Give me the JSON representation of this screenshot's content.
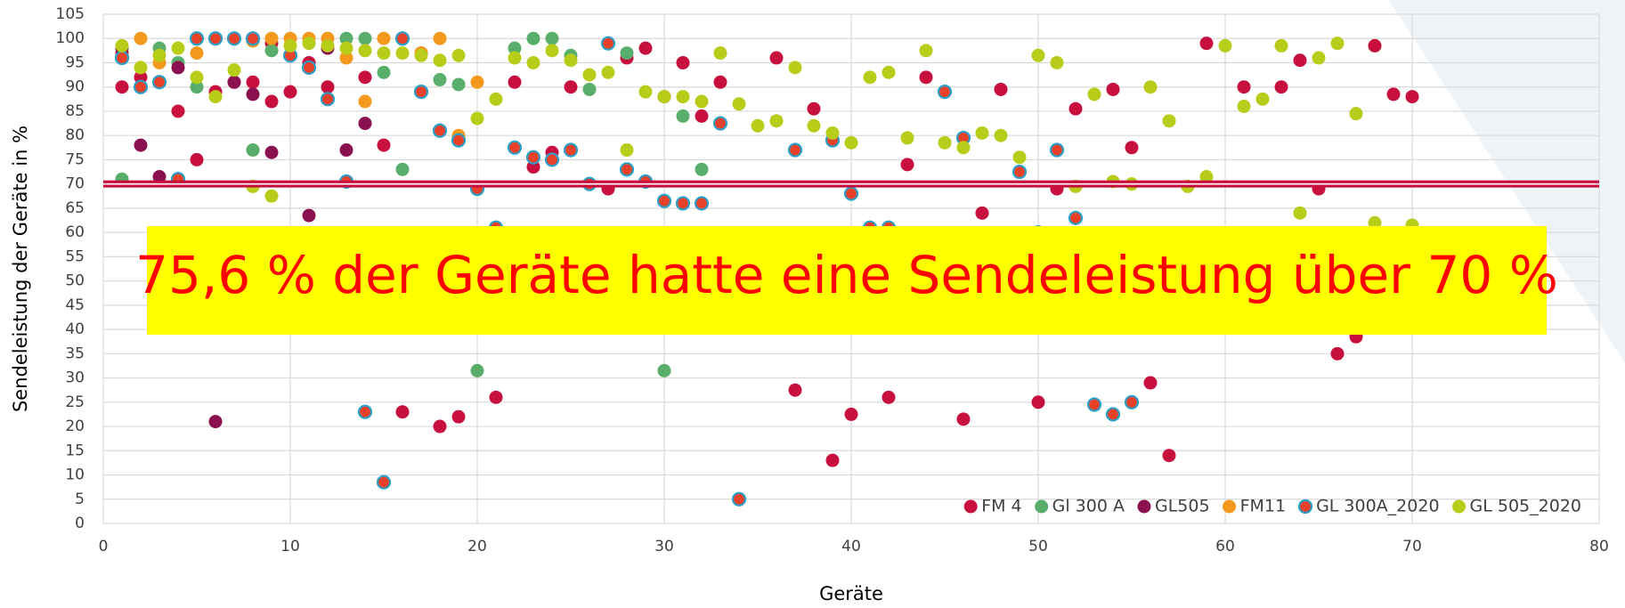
{
  "chart_data": {
    "type": "scatter",
    "x_label": "Geräte",
    "y_label": "Sendeleistung der Geräte in %",
    "annotation": "75,6 % der Geräte hatte eine Sendeleistung über 70 %",
    "xlim": [
      0,
      80
    ],
    "xticks": [
      0,
      10,
      20,
      30,
      40,
      50,
      60,
      70,
      80
    ],
    "ylim": [
      0,
      105
    ],
    "yticks": [
      0,
      5,
      10,
      15,
      20,
      25,
      30,
      35,
      40,
      45,
      50,
      55,
      60,
      65,
      70,
      75,
      80,
      85,
      90,
      95,
      100,
      105
    ],
    "grid": true,
    "legend": "lower-right",
    "reference_line": {
      "value": 70,
      "color": "#c8103e"
    },
    "series": [
      {
        "name": "FM 4",
        "color": "#c8103e",
        "x": [
          1,
          1,
          2,
          3,
          4,
          5,
          6,
          7,
          8,
          9,
          9,
          10,
          11,
          12,
          14,
          15,
          16,
          17,
          18,
          19,
          21,
          22,
          23,
          24,
          25,
          27,
          28,
          29,
          30,
          31,
          32,
          33,
          36,
          37,
          38,
          39,
          40,
          42,
          43,
          44,
          46,
          47,
          48,
          50,
          51,
          52,
          54,
          55,
          56,
          57,
          59,
          61,
          63,
          64,
          65,
          66,
          67,
          68,
          69,
          70
        ],
        "values": [
          90,
          97,
          92,
          91,
          85,
          75,
          89,
          91,
          91,
          87,
          99,
          89,
          95,
          90,
          92,
          78,
          23,
          97,
          20,
          22,
          26,
          91,
          73.5,
          76.5,
          90,
          69,
          96,
          98,
          88,
          95,
          84,
          91,
          96,
          27.5,
          85.5,
          13,
          22.5,
          26,
          74,
          92,
          21.5,
          64,
          89.5,
          25,
          69,
          85.5,
          89.5,
          77.5,
          29,
          14,
          99,
          90,
          90,
          95.5,
          69,
          35,
          38.5,
          98.5,
          88.5,
          88
        ]
      },
      {
        "name": "Gl 300 A",
        "color": "#5aae6b",
        "x": [
          1,
          3,
          4,
          5,
          8,
          9,
          13,
          14,
          15,
          16,
          18,
          19,
          20,
          22,
          23,
          24,
          25,
          26,
          28,
          30,
          31,
          32
        ],
        "values": [
          71,
          98,
          95,
          90,
          77,
          97.5,
          100,
          100,
          93,
          73,
          91.5,
          90.5,
          31.5,
          98,
          100,
          100,
          96.5,
          89.5,
          97,
          31.5,
          84,
          73
        ]
      },
      {
        "name": "GL505",
        "color": "#8b1050",
        "x": [
          1,
          2,
          3,
          4,
          6,
          7,
          8,
          9,
          11,
          12,
          13,
          14
        ],
        "values": [
          98,
          78,
          71.5,
          94,
          21,
          91,
          88.5,
          76.5,
          63.5,
          98,
          77,
          82.5
        ]
      },
      {
        "name": "FM11",
        "color": "#f39a1e",
        "x": [
          1,
          2,
          3,
          5,
          8,
          9,
          10,
          11,
          12,
          13,
          14,
          15,
          16,
          17,
          18,
          19,
          20
        ],
        "values": [
          96,
          100,
          95,
          97,
          99.5,
          100,
          100,
          100,
          100,
          96,
          87,
          100,
          100,
          97,
          100,
          80,
          91
        ]
      },
      {
        "name": "GL 300A_2020",
        "color": "#e8412a",
        "edge_color": "#2aa0c8",
        "x": [
          1,
          2,
          3,
          4,
          5,
          6,
          7,
          8,
          10,
          11,
          12,
          13,
          14,
          15,
          16,
          17,
          18,
          19,
          20,
          21,
          22,
          23,
          24,
          25,
          26,
          27,
          28,
          29,
          30,
          31,
          32,
          33,
          34,
          37,
          39,
          40,
          41,
          42,
          45,
          46,
          49,
          50,
          51,
          52,
          53,
          54,
          55
        ],
        "values": [
          96,
          90,
          91,
          71,
          100,
          100,
          100,
          100,
          96.5,
          94,
          87.5,
          70.5,
          23,
          8.5,
          100,
          89,
          81,
          79,
          69,
          61,
          77.5,
          75.5,
          75,
          77,
          70,
          99,
          73,
          70.5,
          66.5,
          66,
          66,
          82.5,
          5,
          77,
          79,
          68,
          61,
          61,
          89,
          79.5,
          72.5,
          60,
          77,
          63,
          24.5,
          22.5,
          25
        ]
      },
      {
        "name": "GL 505_2020",
        "color": "#b8cc1a",
        "x": [
          1,
          2,
          3,
          4,
          5,
          6,
          7,
          8,
          9,
          10,
          11,
          12,
          13,
          14,
          15,
          16,
          17,
          18,
          19,
          20,
          21,
          22,
          23,
          24,
          25,
          26,
          27,
          28,
          29,
          30,
          31,
          32,
          33,
          34,
          35,
          36,
          37,
          38,
          39,
          40,
          41,
          42,
          43,
          44,
          45,
          46,
          47,
          48,
          49,
          50,
          51,
          52,
          53,
          54,
          55,
          56,
          57,
          58,
          59,
          60,
          61,
          62,
          63,
          64,
          65,
          66,
          67,
          68,
          70
        ],
        "values": [
          98.5,
          94,
          96.5,
          98,
          92,
          88,
          93.5,
          69.5,
          67.5,
          98.5,
          99,
          98.5,
          98,
          97.5,
          97,
          97,
          96.5,
          95.5,
          96.5,
          83.5,
          87.5,
          96,
          95,
          97.5,
          95.5,
          92.5,
          93,
          77,
          89,
          88,
          88,
          87,
          97,
          86.5,
          82,
          83,
          94,
          82,
          80.5,
          78.5,
          92,
          93,
          79.5,
          97.5,
          78.5,
          77.5,
          80.5,
          80,
          75.5,
          96.5,
          95,
          69.5,
          88.5,
          70.5,
          70,
          90,
          83,
          69.5,
          71.5,
          98.5,
          86,
          87.5,
          98.5,
          64,
          96,
          99,
          84.5,
          62,
          61.5
        ]
      }
    ]
  }
}
